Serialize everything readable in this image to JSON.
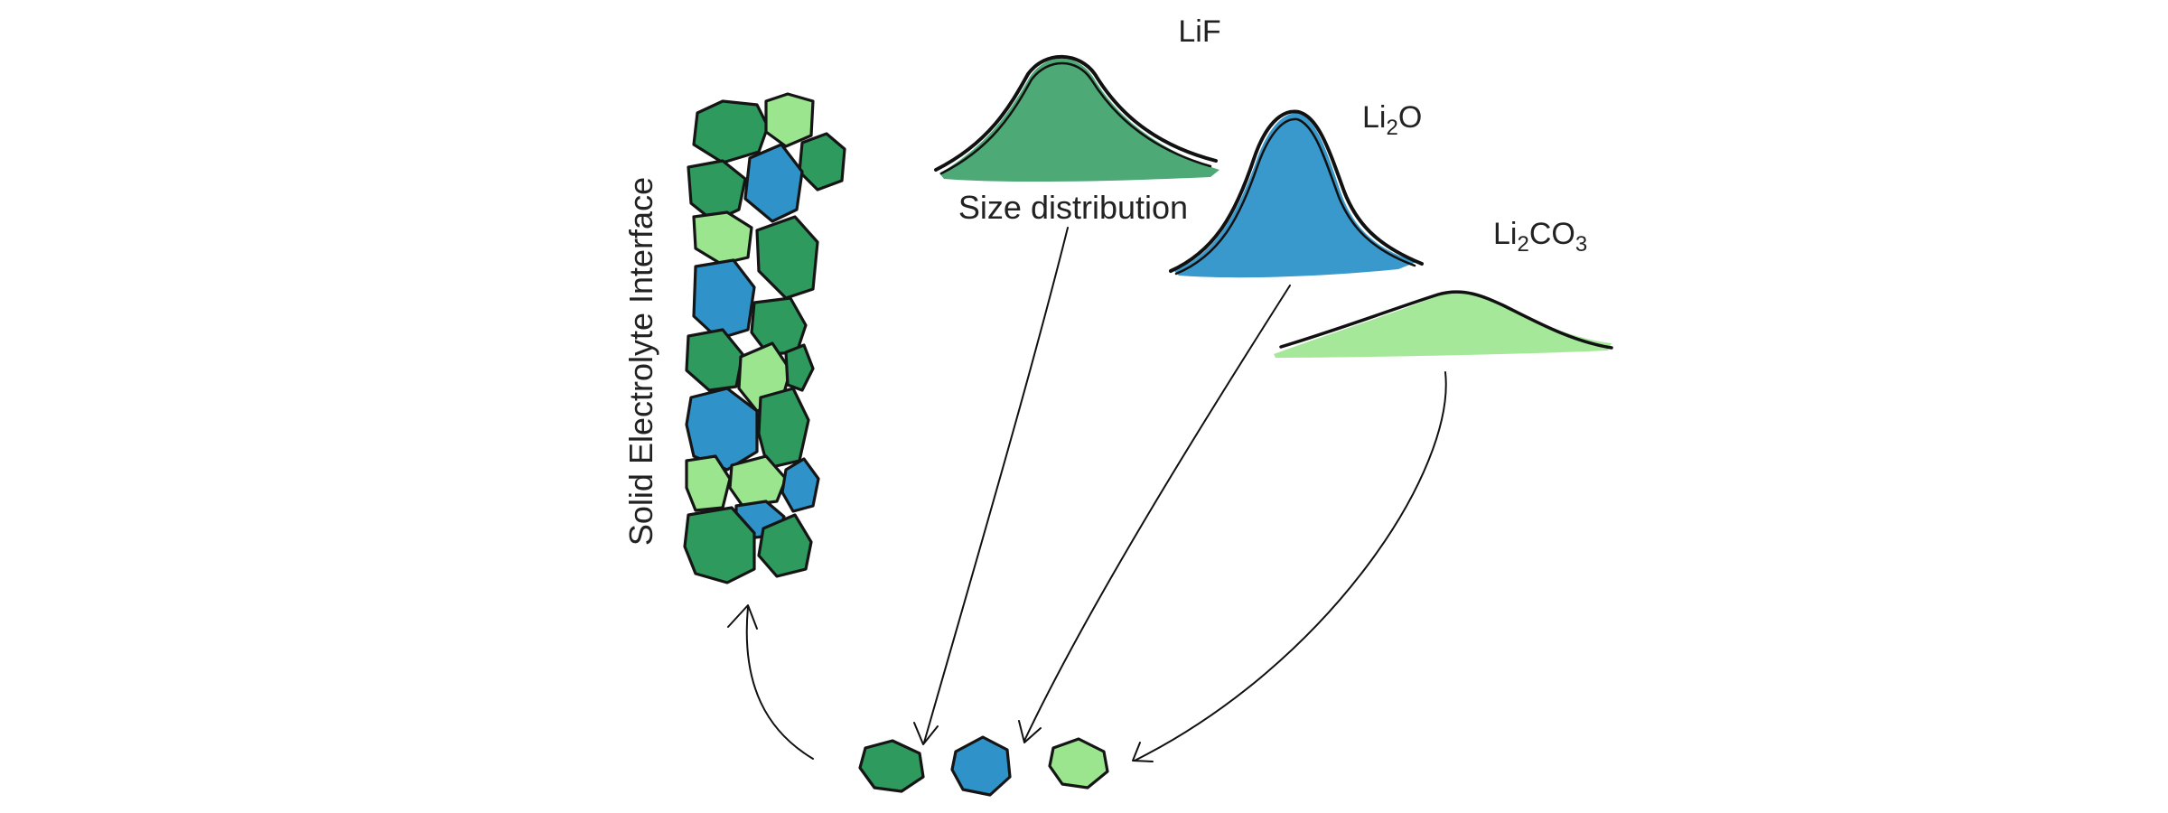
{
  "labels": {
    "side_title": "Solid Electrolyte Interface",
    "size_distribution": "Size distribution",
    "lif": "LiF",
    "li2o": {
      "main": "Li",
      "sub": "2",
      "tail": "O"
    },
    "li2co3": {
      "main": "Li",
      "sub": "2",
      "mid": "CO",
      "sub2": "3"
    }
  },
  "colors": {
    "lif": "#2e9a5e",
    "li2o": "#2f93c9",
    "li2co3": "#9be58f",
    "outline": "#151515"
  }
}
